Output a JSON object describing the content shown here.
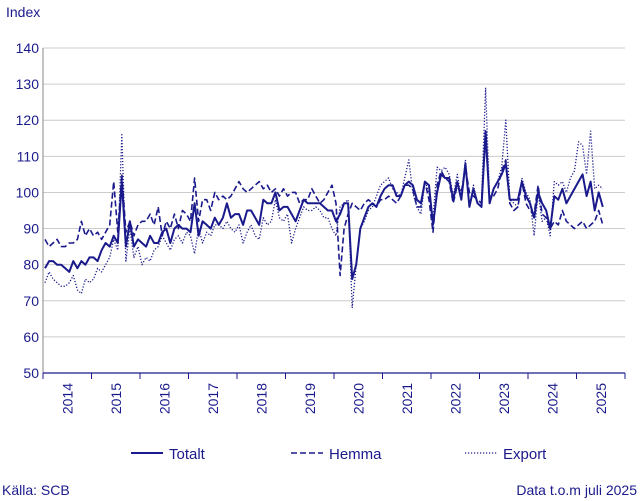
{
  "header": {
    "ylabel": "Index"
  },
  "footer": {
    "source": "Källa: SCB",
    "note": "Data t.o.m juli 2025"
  },
  "colors": {
    "line": "#1a1a8c",
    "grid": "#cccccc",
    "text": "#1a1a8c"
  },
  "chart_data": {
    "type": "line",
    "title": "",
    "ylabel": "Index",
    "ylim": [
      50,
      140
    ],
    "yticks": [
      50,
      60,
      70,
      80,
      90,
      100,
      110,
      120,
      130,
      140
    ],
    "xticks": [
      "2014",
      "2015",
      "2016",
      "2017",
      "2018",
      "2019",
      "2020",
      "2021",
      "2022",
      "2023",
      "2024",
      "2025"
    ],
    "x_start": "2014-01",
    "x_end": "2025-07",
    "grid": true,
    "legend": "bottom",
    "series": [
      {
        "name": "Totalt",
        "style": "solid",
        "values": [
          79,
          81,
          81,
          80,
          80,
          79,
          78,
          81,
          79,
          81,
          80,
          82,
          82,
          81,
          84,
          86,
          85,
          88,
          86,
          103,
          85,
          92,
          85,
          87,
          86,
          85,
          88,
          86,
          86,
          89,
          90,
          86,
          90,
          91,
          90,
          90,
          89,
          97,
          88,
          92,
          91,
          90,
          93,
          91,
          93,
          97,
          93,
          94,
          94,
          91,
          95,
          95,
          93,
          91,
          98,
          97,
          97,
          100,
          95,
          96,
          96,
          94,
          92,
          95,
          98,
          97,
          97,
          97,
          97,
          96,
          95,
          95,
          92,
          94,
          97,
          97,
          76,
          80,
          90,
          93,
          96,
          97,
          96,
          99,
          101,
          102,
          102,
          99,
          99,
          102,
          103,
          102,
          98,
          97,
          103,
          102,
          91,
          100,
          105,
          104,
          104,
          98,
          103,
          98,
          108,
          96,
          101,
          97,
          96,
          117,
          97,
          101,
          103,
          105,
          108,
          98,
          98,
          98,
          103,
          99,
          97,
          93,
          100,
          97,
          95,
          90,
          99,
          98,
          101,
          97,
          99,
          101,
          103,
          105,
          99,
          103,
          95,
          100,
          96
        ]
      },
      {
        "name": "Hemma",
        "style": "dashed",
        "values": [
          87,
          85,
          86,
          87,
          85,
          85,
          86,
          86,
          87,
          92,
          88,
          90,
          88,
          89,
          87,
          89,
          91,
          103,
          89,
          105,
          89,
          92,
          88,
          91,
          92,
          92,
          94,
          91,
          96,
          88,
          92,
          90,
          94,
          90,
          95,
          94,
          92,
          104,
          92,
          98,
          98,
          95,
          100,
          98,
          99,
          98,
          99,
          101,
          103,
          101,
          100,
          101,
          102,
          103,
          101,
          102,
          100,
          101,
          99,
          101,
          99,
          100,
          100,
          97,
          98,
          98,
          101,
          99,
          97,
          98,
          100,
          102,
          97,
          77,
          90,
          94,
          97,
          96,
          95,
          97,
          98,
          97,
          96,
          98,
          98,
          99,
          98,
          97,
          99,
          102,
          102,
          101,
          96,
          96,
          103,
          98,
          89,
          102,
          106,
          104,
          103,
          97,
          102,
          100,
          107,
          100,
          99,
          98,
          97,
          115,
          98,
          99,
          101,
          106,
          109,
          97,
          95,
          96,
          103,
          97,
          95,
          94,
          102,
          94,
          93,
          90,
          92,
          91,
          95,
          92,
          91,
          90,
          91,
          92,
          90,
          91,
          92,
          95,
          91
        ]
      },
      {
        "name": "Export",
        "style": "dotted",
        "values": [
          75,
          78,
          76,
          75,
          74,
          74,
          75,
          77,
          73,
          72,
          76,
          75,
          76,
          79,
          78,
          80,
          82,
          87,
          84,
          116,
          81,
          90,
          82,
          85,
          80,
          82,
          81,
          84,
          85,
          88,
          86,
          84,
          87,
          88,
          86,
          89,
          88,
          83,
          90,
          86,
          89,
          88,
          91,
          91,
          90,
          92,
          90,
          89,
          91,
          86,
          89,
          91,
          88,
          87,
          93,
          91,
          92,
          98,
          93,
          92,
          94,
          86,
          90,
          93,
          96,
          95,
          95,
          96,
          95,
          93,
          93,
          90,
          88,
          96,
          97,
          98,
          68,
          80,
          90,
          92,
          95,
          96,
          99,
          102,
          103,
          104,
          101,
          100,
          99,
          104,
          109,
          100,
          96,
          94,
          103,
          100,
          93,
          107,
          106,
          107,
          105,
          99,
          105,
          98,
          109,
          96,
          102,
          97,
          98,
          129,
          98,
          101,
          103,
          107,
          120,
          98,
          97,
          96,
          104,
          100,
          98,
          88,
          100,
          92,
          93,
          88,
          103,
          102,
          103,
          100,
          104,
          106,
          114,
          113,
          105,
          117,
          101,
          102,
          101
        ]
      }
    ]
  }
}
